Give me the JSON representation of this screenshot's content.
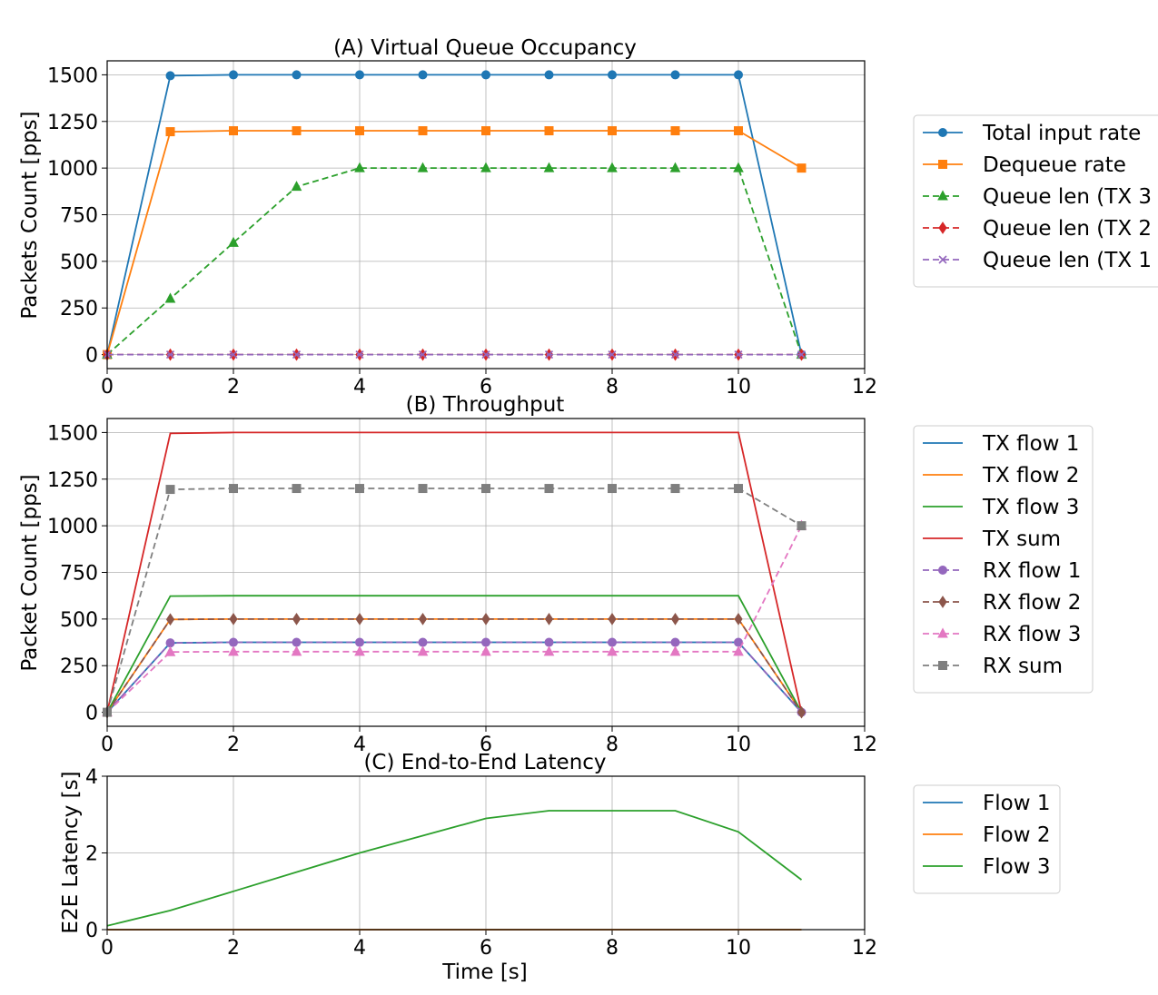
{
  "chart_data": [
    {
      "type": "line",
      "title": "(A) Virtual Queue Occupancy",
      "xlabel": "",
      "ylabel": "Packets Count [pps]",
      "xlim": [
        0,
        12
      ],
      "ylim": [
        -75,
        1575
      ],
      "xticks": [
        0,
        2,
        4,
        6,
        8,
        10,
        12
      ],
      "yticks": [
        0,
        250,
        500,
        750,
        1000,
        1250,
        1500
      ],
      "grid": true,
      "legend_position": "outside-right",
      "series": [
        {
          "name": "Total input rate",
          "color": "#1f77b4",
          "dash": "solid",
          "marker": "circle",
          "x": [
            0,
            1,
            2,
            3,
            4,
            5,
            6,
            7,
            8,
            9,
            10,
            11
          ],
          "y": [
            0,
            1495,
            1500,
            1500,
            1500,
            1500,
            1500,
            1500,
            1500,
            1500,
            1500,
            0
          ]
        },
        {
          "name": "Dequeue rate",
          "color": "#ff7f0e",
          "dash": "solid",
          "marker": "square",
          "x": [
            0,
            1,
            2,
            3,
            4,
            5,
            6,
            7,
            8,
            9,
            10,
            11
          ],
          "y": [
            0,
            1195,
            1200,
            1200,
            1200,
            1200,
            1200,
            1200,
            1200,
            1200,
            1200,
            1000
          ]
        },
        {
          "name": "Queue len (TX 3",
          "color": "#2ca02c",
          "dash": "dashed",
          "marker": "triangle",
          "x": [
            0,
            1,
            2,
            3,
            4,
            5,
            6,
            7,
            8,
            9,
            10,
            11
          ],
          "y": [
            0,
            300,
            600,
            900,
            1000,
            1000,
            1000,
            1000,
            1000,
            1000,
            1000,
            0
          ]
        },
        {
          "name": "Queue len (TX 2",
          "color": "#d62728",
          "dash": "dashed",
          "marker": "diamond",
          "x": [
            0,
            1,
            2,
            3,
            4,
            5,
            6,
            7,
            8,
            9,
            10,
            11
          ],
          "y": [
            0,
            0,
            0,
            0,
            0,
            0,
            0,
            0,
            0,
            0,
            0,
            0
          ]
        },
        {
          "name": "Queue len (TX 1",
          "color": "#9467bd",
          "dash": "dashed",
          "marker": "x",
          "x": [
            0,
            1,
            2,
            3,
            4,
            5,
            6,
            7,
            8,
            9,
            10,
            11
          ],
          "y": [
            0,
            0,
            0,
            0,
            0,
            0,
            0,
            0,
            0,
            0,
            0,
            0
          ]
        }
      ]
    },
    {
      "type": "line",
      "title": "(B) Throughput",
      "xlabel": "",
      "ylabel": "Packet Count [pps]",
      "xlim": [
        0,
        12
      ],
      "ylim": [
        -75,
        1575
      ],
      "xticks": [
        0,
        2,
        4,
        6,
        8,
        10,
        12
      ],
      "yticks": [
        0,
        250,
        500,
        750,
        1000,
        1250,
        1500
      ],
      "grid": true,
      "legend_position": "outside-right",
      "series": [
        {
          "name": "TX flow 1",
          "color": "#1f77b4",
          "dash": "solid",
          "marker": "none",
          "x": [
            0,
            1,
            2,
            3,
            4,
            5,
            6,
            7,
            8,
            9,
            10,
            11
          ],
          "y": [
            0,
            372,
            375,
            375,
            375,
            375,
            375,
            375,
            375,
            375,
            375,
            0
          ]
        },
        {
          "name": "TX flow 2",
          "color": "#ff7f0e",
          "dash": "solid",
          "marker": "none",
          "x": [
            0,
            1,
            2,
            3,
            4,
            5,
            6,
            7,
            8,
            9,
            10,
            11
          ],
          "y": [
            0,
            498,
            500,
            500,
            500,
            500,
            500,
            500,
            500,
            500,
            500,
            0
          ]
        },
        {
          "name": "TX flow 3",
          "color": "#2ca02c",
          "dash": "solid",
          "marker": "none",
          "x": [
            0,
            1,
            2,
            3,
            4,
            5,
            6,
            7,
            8,
            9,
            10,
            11
          ],
          "y": [
            0,
            623,
            625,
            625,
            625,
            625,
            625,
            625,
            625,
            625,
            625,
            0
          ]
        },
        {
          "name": "TX sum",
          "color": "#d62728",
          "dash": "solid",
          "marker": "none",
          "x": [
            0,
            1,
            2,
            3,
            4,
            5,
            6,
            7,
            8,
            9,
            10,
            11
          ],
          "y": [
            0,
            1495,
            1500,
            1500,
            1500,
            1500,
            1500,
            1500,
            1500,
            1500,
            1500,
            0
          ]
        },
        {
          "name": "RX flow 1",
          "color": "#9467bd",
          "dash": "dashed",
          "marker": "circle",
          "x": [
            0,
            1,
            2,
            3,
            4,
            5,
            6,
            7,
            8,
            9,
            10,
            11
          ],
          "y": [
            0,
            372,
            375,
            375,
            375,
            375,
            375,
            375,
            375,
            375,
            375,
            0
          ]
        },
        {
          "name": "RX flow 2",
          "color": "#8c564b",
          "dash": "dashed",
          "marker": "diamond",
          "x": [
            0,
            1,
            2,
            3,
            4,
            5,
            6,
            7,
            8,
            9,
            10,
            11
          ],
          "y": [
            0,
            498,
            500,
            500,
            500,
            500,
            500,
            500,
            500,
            500,
            500,
            0
          ]
        },
        {
          "name": "RX flow 3",
          "color": "#e377c2",
          "dash": "dashed",
          "marker": "triangle",
          "x": [
            0,
            1,
            2,
            3,
            4,
            5,
            6,
            7,
            8,
            9,
            10,
            11
          ],
          "y": [
            0,
            323,
            325,
            325,
            325,
            325,
            325,
            325,
            325,
            325,
            325,
            1000
          ]
        },
        {
          "name": "RX sum",
          "color": "#7f7f7f",
          "dash": "dashed",
          "marker": "square",
          "x": [
            0,
            1,
            2,
            3,
            4,
            5,
            6,
            7,
            8,
            9,
            10,
            11
          ],
          "y": [
            0,
            1195,
            1200,
            1200,
            1200,
            1200,
            1200,
            1200,
            1200,
            1200,
            1200,
            1000
          ]
        }
      ]
    },
    {
      "type": "line",
      "title": "(C) End-to-End Latency",
      "xlabel": "Time [s]",
      "ylabel": "E2E Latency [s]",
      "xlim": [
        0,
        12
      ],
      "ylim": [
        0,
        4
      ],
      "xticks": [
        0,
        2,
        4,
        6,
        8,
        10,
        12
      ],
      "yticks": [
        0,
        2,
        4
      ],
      "grid": true,
      "legend_position": "outside-right",
      "series": [
        {
          "name": "Flow 1",
          "color": "#1f77b4",
          "dash": "solid",
          "marker": "none",
          "x": [
            0,
            1,
            2,
            3,
            4,
            5,
            6,
            7,
            8,
            9,
            10,
            11
          ],
          "y": [
            0,
            0,
            0,
            0,
            0,
            0,
            0,
            0,
            0,
            0,
            0,
            0
          ]
        },
        {
          "name": "Flow 2",
          "color": "#ff7f0e",
          "dash": "solid",
          "marker": "none",
          "x": [
            0,
            1,
            2,
            3,
            4,
            5,
            6,
            7,
            8,
            9,
            10,
            11
          ],
          "y": [
            0,
            0,
            0,
            0,
            0,
            0,
            0,
            0,
            0,
            0,
            0,
            0
          ]
        },
        {
          "name": "Flow 3",
          "color": "#2ca02c",
          "dash": "solid",
          "marker": "none",
          "x": [
            0,
            1,
            2,
            3,
            4,
            5,
            6,
            7,
            8,
            9,
            10,
            11
          ],
          "y": [
            0.1,
            0.5,
            1.0,
            1.5,
            2.0,
            2.45,
            2.9,
            3.1,
            3.1,
            3.1,
            2.55,
            1.3
          ]
        }
      ]
    }
  ]
}
